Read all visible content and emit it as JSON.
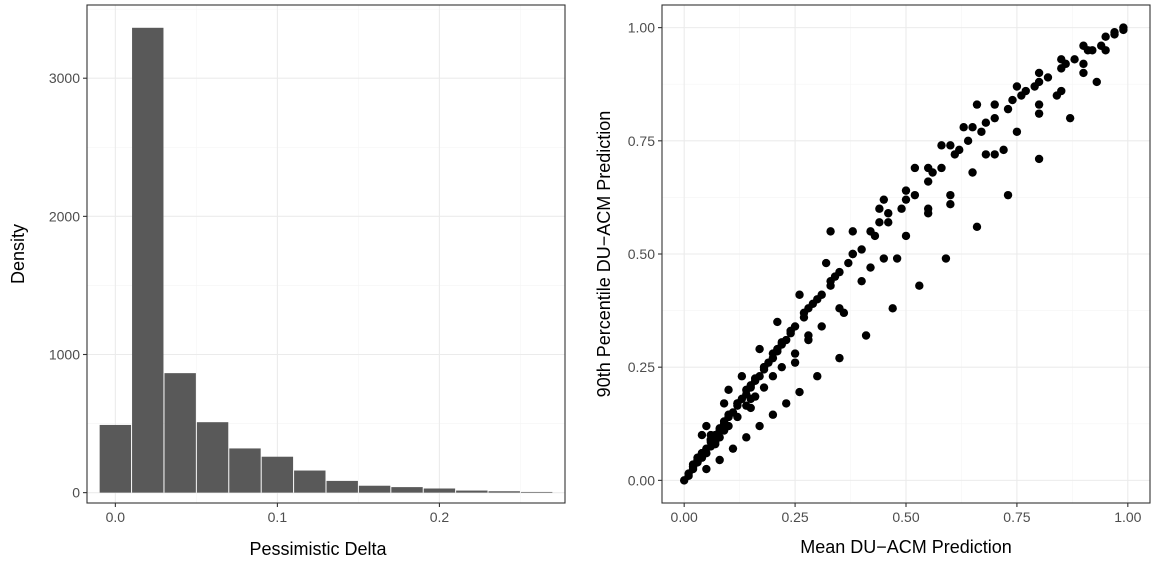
{
  "colors": {
    "bar_fill": "#595959",
    "point_fill": "#000000",
    "panel_border": "#333333",
    "grid_major": "#ebebeb",
    "grid_minor": "#f5f5f5",
    "tick_text": "#4d4d4d"
  },
  "chart_data": [
    {
      "type": "bar",
      "subtype": "histogram",
      "title": "",
      "xlabel": "Pessimistic Delta",
      "ylabel": "Density",
      "bin_width": 0.02,
      "bin_centers": [
        0.0,
        0.02,
        0.04,
        0.06,
        0.08,
        0.1,
        0.12,
        0.14,
        0.16,
        0.18,
        0.2,
        0.22,
        0.24,
        0.26
      ],
      "values": [
        490,
        3365,
        865,
        510,
        320,
        260,
        160,
        85,
        50,
        40,
        30,
        15,
        10,
        5
      ],
      "xlim": [
        -0.0175,
        0.2775
      ],
      "ylim": [
        -75,
        3530
      ],
      "x_ticks": [
        0.0,
        0.1,
        0.2
      ],
      "x_tick_labels": [
        "0.0",
        "0.1",
        "0.2"
      ],
      "y_ticks": [
        0,
        1000,
        2000,
        3000
      ],
      "y_tick_labels": [
        "0",
        "1000",
        "2000",
        "3000"
      ],
      "grid": true
    },
    {
      "type": "scatter",
      "title": "",
      "xlabel": "Mean DU−ACM Prediction",
      "ylabel": "90th Percentile DU−ACM Prediction",
      "xlim": [
        -0.05,
        1.05
      ],
      "ylim": [
        -0.05,
        1.05
      ],
      "x_ticks": [
        0.0,
        0.25,
        0.5,
        0.75,
        1.0
      ],
      "x_tick_labels": [
        "0.00",
        "0.25",
        "0.50",
        "0.75",
        "1.00"
      ],
      "y_ticks": [
        0.0,
        0.25,
        0.5,
        0.75,
        1.0
      ],
      "y_tick_labels": [
        "0.00",
        "0.25",
        "0.50",
        "0.75",
        "1.00"
      ],
      "grid": true,
      "x": [
        0.0,
        0.01,
        0.02,
        0.03,
        0.04,
        0.05,
        0.06,
        0.07,
        0.08,
        0.09,
        0.1,
        0.11,
        0.12,
        0.13,
        0.14,
        0.15,
        0.16,
        0.17,
        0.18,
        0.19,
        0.2,
        0.21,
        0.22,
        0.23,
        0.24,
        0.25,
        0.27,
        0.29,
        0.31,
        0.33,
        0.35,
        0.37,
        0.4,
        0.43,
        0.46,
        0.49,
        0.52,
        0.55,
        0.58,
        0.61,
        0.64,
        0.67,
        0.7,
        0.73,
        0.76,
        0.79,
        0.82,
        0.85,
        0.88,
        0.91,
        0.94,
        0.97,
        0.99,
        0.01,
        0.02,
        0.03,
        0.04,
        0.05,
        0.06,
        0.07,
        0.08,
        0.09,
        0.1,
        0.12,
        0.14,
        0.16,
        0.18,
        0.2,
        0.22,
        0.25,
        0.28,
        0.31,
        0.35,
        0.4,
        0.45,
        0.5,
        0.55,
        0.6,
        0.65,
        0.7,
        0.75,
        0.8,
        0.85,
        0.9,
        0.95,
        0.02,
        0.04,
        0.06,
        0.08,
        0.1,
        0.12,
        0.14,
        0.16,
        0.18,
        0.2,
        0.22,
        0.24,
        0.27,
        0.3,
        0.34,
        0.38,
        0.42,
        0.46,
        0.5,
        0.55,
        0.6,
        0.65,
        0.7,
        0.75,
        0.8,
        0.85,
        0.9,
        0.95,
        0.03,
        0.06,
        0.09,
        0.12,
        0.15,
        0.18,
        0.21,
        0.24,
        0.28,
        0.33,
        0.38,
        0.44,
        0.5,
        0.56,
        0.62,
        0.68,
        0.74,
        0.8,
        0.86,
        0.92,
        0.97,
        0.05,
        0.08,
        0.11,
        0.14,
        0.17,
        0.2,
        0.23,
        0.26,
        0.3,
        0.35,
        0.41,
        0.47,
        0.53,
        0.59,
        0.66,
        0.73,
        0.8,
        0.87,
        0.93,
        0.09,
        0.13,
        0.17,
        0.21,
        0.26,
        0.32,
        0.38,
        0.45,
        0.52,
        0.58,
        0.63,
        0.07,
        0.15,
        0.25,
        0.36,
        0.48,
        0.6,
        0.72,
        0.84,
        0.05,
        0.04,
        0.1,
        0.06,
        0.02,
        0.03,
        0.15,
        0.28,
        0.42,
        0.55,
        0.68,
        0.8,
        0.9,
        0.99,
        0.33,
        0.66,
        0.44,
        0.77
      ],
      "y": [
        0.0,
        0.015,
        0.03,
        0.045,
        0.06,
        0.07,
        0.085,
        0.1,
        0.11,
        0.125,
        0.14,
        0.15,
        0.165,
        0.18,
        0.19,
        0.205,
        0.22,
        0.23,
        0.245,
        0.26,
        0.27,
        0.285,
        0.3,
        0.31,
        0.325,
        0.34,
        0.36,
        0.39,
        0.41,
        0.43,
        0.46,
        0.48,
        0.51,
        0.54,
        0.57,
        0.6,
        0.63,
        0.66,
        0.69,
        0.72,
        0.75,
        0.77,
        0.8,
        0.82,
        0.85,
        0.87,
        0.89,
        0.91,
        0.93,
        0.95,
        0.96,
        0.985,
        0.995,
        0.01,
        0.025,
        0.04,
        0.05,
        0.06,
        0.075,
        0.085,
        0.095,
        0.11,
        0.12,
        0.14,
        0.165,
        0.185,
        0.205,
        0.23,
        0.25,
        0.28,
        0.31,
        0.34,
        0.38,
        0.44,
        0.49,
        0.54,
        0.59,
        0.63,
        0.68,
        0.72,
        0.77,
        0.81,
        0.86,
        0.9,
        0.95,
        0.035,
        0.06,
        0.09,
        0.115,
        0.145,
        0.17,
        0.2,
        0.225,
        0.25,
        0.28,
        0.305,
        0.33,
        0.37,
        0.4,
        0.45,
        0.5,
        0.55,
        0.59,
        0.64,
        0.69,
        0.74,
        0.78,
        0.83,
        0.87,
        0.9,
        0.93,
        0.96,
        0.98,
        0.05,
        0.09,
        0.13,
        0.17,
        0.21,
        0.25,
        0.29,
        0.33,
        0.38,
        0.44,
        0.5,
        0.57,
        0.62,
        0.68,
        0.73,
        0.79,
        0.84,
        0.88,
        0.92,
        0.95,
        0.99,
        0.025,
        0.045,
        0.07,
        0.095,
        0.12,
        0.145,
        0.17,
        0.195,
        0.23,
        0.27,
        0.32,
        0.38,
        0.43,
        0.49,
        0.56,
        0.63,
        0.71,
        0.8,
        0.88,
        0.17,
        0.23,
        0.29,
        0.35,
        0.41,
        0.48,
        0.55,
        0.62,
        0.69,
        0.74,
        0.78,
        0.08,
        0.16,
        0.26,
        0.37,
        0.49,
        0.61,
        0.73,
        0.85,
        0.12,
        0.1,
        0.2,
        0.1,
        0.03,
        0.04,
        0.18,
        0.32,
        0.47,
        0.6,
        0.72,
        0.83,
        0.92,
        1.0,
        0.55,
        0.83,
        0.6,
        0.86
      ]
    }
  ]
}
